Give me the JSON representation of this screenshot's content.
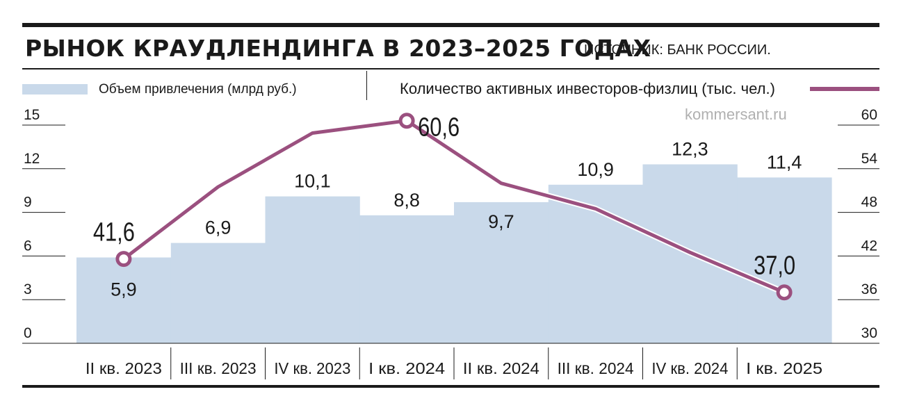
{
  "header": {
    "title": "РЫНОК КРАУДЛЕНДИНГА В 2023–2025 ГОДАХ",
    "source": "ИСТОЧНИК: БАНК РОССИИ."
  },
  "watermark": "kommersant.ru",
  "colors": {
    "bar": "#c9d9ea",
    "line": "#9b507f",
    "text": "#1a1a1a"
  },
  "chart_data": {
    "type": "bar",
    "categories": [
      "II кв. 2023",
      "III кв. 2023",
      "IV кв. 2023",
      "I кв. 2024",
      "II кв. 2024",
      "III кв. 2024",
      "IV кв. 2024",
      "I кв. 2025"
    ],
    "series": [
      {
        "name": "Объем привлечения (млрд руб.)",
        "type": "bar",
        "axis": "left",
        "values": [
          5.9,
          6.9,
          10.1,
          8.8,
          9.7,
          10.9,
          12.3,
          11.4
        ],
        "labels": [
          "5,9",
          "6,9",
          "10,1",
          "8,8",
          "9,7",
          "10,9",
          "12,3",
          "11,4"
        ]
      },
      {
        "name": "Количество активных инвесторов-физлиц (тыс. чел.)",
        "type": "line",
        "axis": "right",
        "values": [
          41.6,
          51.5,
          58.9,
          60.6,
          52.0,
          48.5,
          42.5,
          37.0
        ],
        "labels": [
          "41,6",
          "",
          "",
          "60,6",
          "",
          "",
          "",
          "37,0"
        ]
      }
    ],
    "left_axis": {
      "ticks": [
        "0",
        "3",
        "6",
        "9",
        "12",
        "15"
      ],
      "ylim": [
        0,
        15
      ]
    },
    "right_axis": {
      "ticks": [
        "30",
        "36",
        "42",
        "48",
        "54",
        "60"
      ],
      "ylim": [
        30,
        60
      ]
    },
    "legend_position": "top",
    "grid": false
  }
}
